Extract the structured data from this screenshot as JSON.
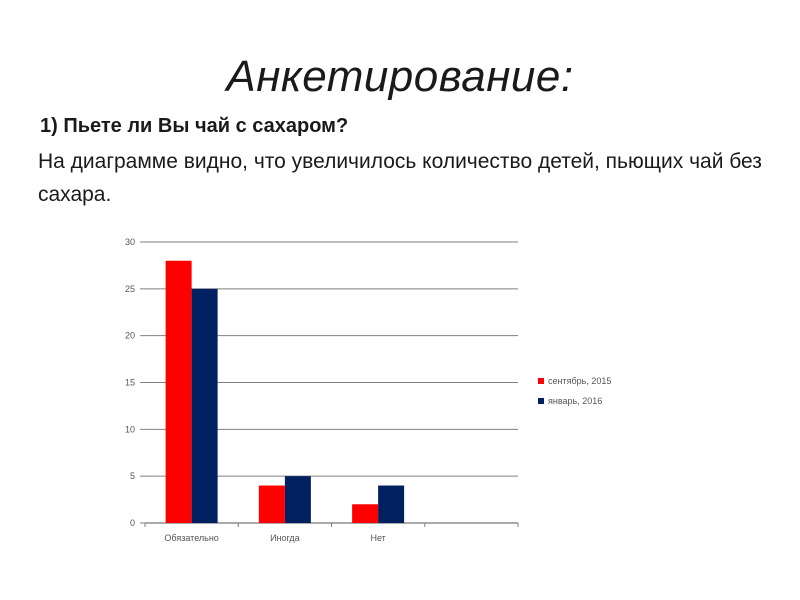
{
  "slide": {
    "title": "Анкетирование:",
    "question": "1) Пьете ли Вы чай  с сахаром?",
    "description": "На диаграмме видно, что увеличилось количество детей, пьющих чай без сахара."
  },
  "chart_data": {
    "type": "bar",
    "categories": [
      "Обязательно",
      "Иногда",
      "Нет",
      ""
    ],
    "series": [
      {
        "name": "сентябрь, 2015",
        "color": "#ff0000",
        "values": [
          28,
          4,
          2,
          null
        ]
      },
      {
        "name": "январь, 2016",
        "color": "#002060",
        "values": [
          25,
          5,
          4,
          null
        ]
      }
    ],
    "ylim": [
      0,
      30
    ],
    "yticks": [
      0,
      5,
      10,
      15,
      20,
      25,
      30
    ],
    "grid": true,
    "legend": "right"
  }
}
